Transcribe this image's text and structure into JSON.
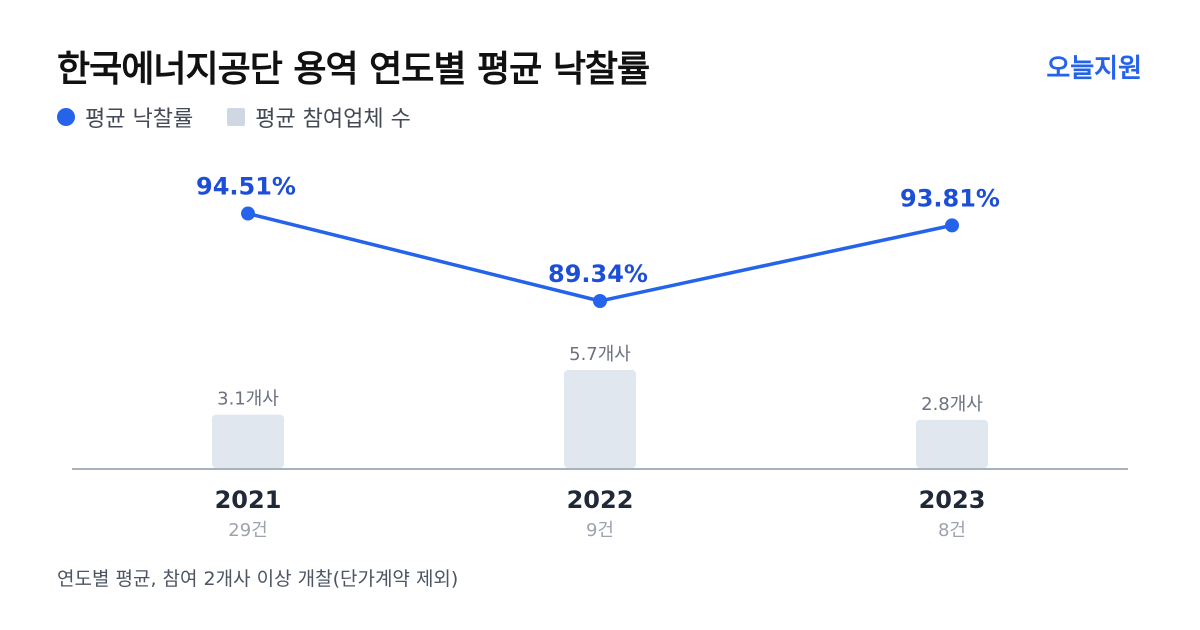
{
  "header": {
    "title": "한국에너지공단 용역 연도별 평균 낙찰률",
    "brand": "오늘지원"
  },
  "legend": {
    "line_label": "평균 낙찰률",
    "bar_label": "평균 참여업체 수"
  },
  "footnote": "연도별 평균, 참여 2개사 이상 개찰(단가계약 제외)",
  "colors": {
    "line": "#2563eb",
    "bar": "#e1e7ef",
    "axis": "#8b97a8"
  },
  "chart_data": {
    "type": "bar",
    "categories": [
      "2021",
      "2022",
      "2023"
    ],
    "counts": [
      "29건",
      "9건",
      "8건"
    ],
    "series": [
      {
        "name": "평균 낙찰률",
        "type": "line",
        "values": [
          94.51,
          89.34,
          93.81
        ],
        "labels": [
          "94.51%",
          "89.34%",
          "93.81%"
        ]
      },
      {
        "name": "평균 참여업체 수",
        "type": "bar",
        "values": [
          3.1,
          5.7,
          2.8
        ],
        "labels": [
          "3.1개사",
          "5.7개사",
          "2.8개사"
        ]
      }
    ],
    "grid": false,
    "legend_position": "top-left"
  }
}
